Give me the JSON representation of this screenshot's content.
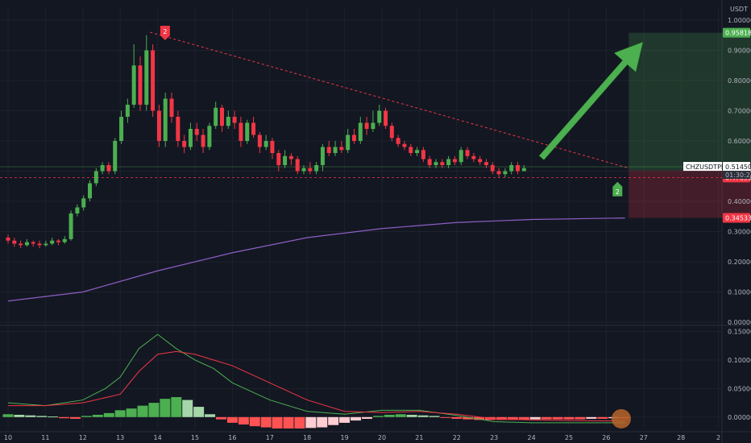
{
  "chart_data": [
    {
      "type": "candlestick",
      "panel": "price",
      "currency_label": "USDT",
      "symbol": "CHZUSDTPERP",
      "last_price": "0.51450",
      "countdown": "01:30:23",
      "x_tick_labels": [
        "10",
        "11",
        "12",
        "13",
        "14",
        "15",
        "16",
        "17",
        "18",
        "19",
        "20",
        "21",
        "22",
        "23",
        "24",
        "25",
        "26",
        "27",
        "28",
        "2"
      ],
      "y_ticks": [
        0.0,
        0.1,
        0.2,
        0.3,
        0.4,
        0.5,
        0.6,
        0.7,
        0.8,
        0.9,
        1.0
      ],
      "y_tick_labels": [
        "0.00000",
        "0.10000",
        "0.20000",
        "0.30000",
        "0.40000",
        "0.50000",
        "0.60000",
        "0.70000",
        "0.80000",
        "0.90000",
        "1.00000"
      ],
      "ylim": [
        0.0,
        1.04
      ],
      "price_tags": [
        {
          "label": "0.95818",
          "value": 0.95818,
          "color": "#4caf50"
        },
        {
          "label": "0.50237",
          "value": 0.50237,
          "color": "#787b86"
        },
        {
          "label": "0.47896",
          "value": 0.47896,
          "color": "#f23645"
        },
        {
          "label": "0.34533",
          "value": 0.34533,
          "color": "#f23645"
        }
      ],
      "candles": [
        [
          10.0,
          0.28,
          0.27,
          0.29,
          0.26
        ],
        [
          10.2,
          0.27,
          0.26,
          0.28,
          0.25
        ],
        [
          10.4,
          0.26,
          0.255,
          0.27,
          0.245
        ],
        [
          10.6,
          0.255,
          0.265,
          0.275,
          0.25
        ],
        [
          10.8,
          0.265,
          0.26,
          0.27,
          0.25
        ],
        [
          11.0,
          0.26,
          0.255,
          0.27,
          0.245
        ],
        [
          11.2,
          0.255,
          0.26,
          0.27,
          0.25
        ],
        [
          11.4,
          0.26,
          0.27,
          0.28,
          0.255
        ],
        [
          11.6,
          0.27,
          0.265,
          0.275,
          0.255
        ],
        [
          11.8,
          0.265,
          0.275,
          0.285,
          0.26
        ],
        [
          12.0,
          0.275,
          0.36,
          0.37,
          0.27
        ],
        [
          12.2,
          0.36,
          0.38,
          0.39,
          0.35
        ],
        [
          12.4,
          0.38,
          0.41,
          0.42,
          0.37
        ],
        [
          12.6,
          0.41,
          0.46,
          0.47,
          0.4
        ],
        [
          12.8,
          0.46,
          0.5,
          0.51,
          0.45
        ],
        [
          13.0,
          0.5,
          0.52,
          0.53,
          0.49
        ],
        [
          13.2,
          0.52,
          0.5,
          0.53,
          0.49
        ],
        [
          13.4,
          0.5,
          0.6,
          0.61,
          0.49
        ],
        [
          13.6,
          0.6,
          0.68,
          0.7,
          0.59
        ],
        [
          13.8,
          0.68,
          0.72,
          0.74,
          0.66
        ],
        [
          14.0,
          0.72,
          0.85,
          0.92,
          0.71
        ],
        [
          14.2,
          0.85,
          0.72,
          0.88,
          0.7
        ],
        [
          14.4,
          0.72,
          0.9,
          0.95,
          0.7
        ],
        [
          14.6,
          0.9,
          0.7,
          0.92,
          0.68
        ],
        [
          14.8,
          0.7,
          0.6,
          0.72,
          0.58
        ],
        [
          15.0,
          0.6,
          0.74,
          0.76,
          0.58
        ],
        [
          15.2,
          0.74,
          0.68,
          0.76,
          0.66
        ],
        [
          15.4,
          0.68,
          0.6,
          0.7,
          0.58
        ],
        [
          15.6,
          0.6,
          0.58,
          0.62,
          0.56
        ],
        [
          15.8,
          0.58,
          0.64,
          0.66,
          0.57
        ],
        [
          16.0,
          0.64,
          0.62,
          0.66,
          0.6
        ],
        [
          16.2,
          0.62,
          0.58,
          0.64,
          0.56
        ],
        [
          16.4,
          0.58,
          0.65,
          0.66,
          0.57
        ],
        [
          16.6,
          0.65,
          0.71,
          0.73,
          0.64
        ],
        [
          16.8,
          0.71,
          0.65,
          0.72,
          0.63
        ],
        [
          17.0,
          0.65,
          0.68,
          0.7,
          0.64
        ],
        [
          17.2,
          0.68,
          0.66,
          0.7,
          0.64
        ],
        [
          17.4,
          0.66,
          0.6,
          0.68,
          0.58
        ],
        [
          17.6,
          0.6,
          0.66,
          0.67,
          0.59
        ],
        [
          17.8,
          0.66,
          0.62,
          0.68,
          0.61
        ],
        [
          18.0,
          0.62,
          0.58,
          0.63,
          0.56
        ],
        [
          18.2,
          0.58,
          0.6,
          0.62,
          0.57
        ],
        [
          18.4,
          0.6,
          0.56,
          0.61,
          0.54
        ],
        [
          18.6,
          0.56,
          0.52,
          0.57,
          0.5
        ],
        [
          18.8,
          0.52,
          0.55,
          0.57,
          0.51
        ],
        [
          19.0,
          0.55,
          0.54,
          0.56,
          0.52
        ],
        [
          19.2,
          0.54,
          0.5,
          0.55,
          0.49
        ],
        [
          19.4,
          0.5,
          0.51,
          0.52,
          0.49
        ],
        [
          19.6,
          0.51,
          0.5,
          0.53,
          0.49
        ],
        [
          19.8,
          0.5,
          0.52,
          0.53,
          0.49
        ],
        [
          20.0,
          0.52,
          0.58,
          0.59,
          0.5
        ],
        [
          20.2,
          0.58,
          0.56,
          0.6,
          0.55
        ],
        [
          20.4,
          0.56,
          0.58,
          0.6,
          0.55
        ],
        [
          20.6,
          0.58,
          0.57,
          0.6,
          0.56
        ],
        [
          20.8,
          0.57,
          0.62,
          0.64,
          0.56
        ],
        [
          21.0,
          0.62,
          0.6,
          0.64,
          0.59
        ],
        [
          21.2,
          0.6,
          0.66,
          0.68,
          0.59
        ],
        [
          21.4,
          0.66,
          0.64,
          0.68,
          0.62
        ],
        [
          21.6,
          0.64,
          0.66,
          0.7,
          0.63
        ],
        [
          21.8,
          0.66,
          0.7,
          0.72,
          0.65
        ],
        [
          22.0,
          0.7,
          0.65,
          0.71,
          0.64
        ],
        [
          22.2,
          0.65,
          0.61,
          0.66,
          0.6
        ],
        [
          22.4,
          0.61,
          0.59,
          0.62,
          0.58
        ],
        [
          22.6,
          0.59,
          0.58,
          0.6,
          0.57
        ],
        [
          22.8,
          0.58,
          0.56,
          0.59,
          0.55
        ],
        [
          23.0,
          0.56,
          0.57,
          0.58,
          0.55
        ],
        [
          23.2,
          0.57,
          0.54,
          0.58,
          0.53
        ],
        [
          23.4,
          0.54,
          0.52,
          0.55,
          0.51
        ],
        [
          23.6,
          0.52,
          0.53,
          0.54,
          0.51
        ],
        [
          23.8,
          0.53,
          0.52,
          0.54,
          0.51
        ],
        [
          24.0,
          0.52,
          0.54,
          0.55,
          0.51
        ],
        [
          24.2,
          0.54,
          0.53,
          0.55,
          0.52
        ],
        [
          24.4,
          0.53,
          0.57,
          0.58,
          0.52
        ],
        [
          24.6,
          0.57,
          0.55,
          0.58,
          0.54
        ],
        [
          24.8,
          0.55,
          0.54,
          0.56,
          0.53
        ],
        [
          25.0,
          0.54,
          0.53,
          0.55,
          0.52
        ],
        [
          25.2,
          0.53,
          0.52,
          0.54,
          0.51
        ],
        [
          25.4,
          0.52,
          0.5,
          0.53,
          0.49
        ],
        [
          25.6,
          0.5,
          0.49,
          0.51,
          0.48
        ],
        [
          25.8,
          0.49,
          0.5,
          0.51,
          0.48
        ],
        [
          26.0,
          0.5,
          0.52,
          0.53,
          0.49
        ],
        [
          26.2,
          0.52,
          0.5,
          0.53,
          0.49
        ],
        [
          26.4,
          0.5,
          0.51,
          0.52,
          0.5
        ]
      ],
      "ema": {
        "name": "",
        "color": "#8e5ec4",
        "points": [
          [
            10,
            0.07
          ],
          [
            12,
            0.1
          ],
          [
            14,
            0.17
          ],
          [
            16,
            0.23
          ],
          [
            18,
            0.28
          ],
          [
            20,
            0.31
          ],
          [
            22,
            0.33
          ],
          [
            24,
            0.34
          ],
          [
            26.5,
            0.345
          ]
        ]
      },
      "trendline": {
        "color": "#f23645",
        "from": [
          13.8,
          0.96
        ],
        "to": [
          26.6,
          0.51
        ]
      },
      "ref_line": {
        "color": "#f23645",
        "value": 0.47896
      },
      "position": {
        "entry": 0.50237,
        "target": 0.95818,
        "stop": 0.34533,
        "from": 26.6,
        "to": 29.9
      },
      "signal_markers": [
        {
          "label": "2",
          "x": 14.2,
          "value": 0.96,
          "color": "#f23645",
          "dir": "down"
        },
        {
          "label": "2",
          "x": 26.3,
          "value": 0.47,
          "color": "#4caf50",
          "dir": "up"
        }
      ]
    },
    {
      "type": "macd",
      "panel": "indicator",
      "y_ticks": [
        0.0,
        0.05,
        0.1,
        0.15
      ],
      "y_tick_labels": [
        "0.00000",
        "0.05000",
        "0.10000",
        "0.15000"
      ],
      "ylim": [
        -0.02,
        0.155
      ],
      "macd_line": {
        "color": "#4caf50",
        "points": [
          [
            10,
            0.025
          ],
          [
            11,
            0.02
          ],
          [
            12,
            0.03
          ],
          [
            12.6,
            0.05
          ],
          [
            13,
            0.07
          ],
          [
            13.5,
            0.12
          ],
          [
            14,
            0.145
          ],
          [
            14.5,
            0.12
          ],
          [
            15,
            0.1
          ],
          [
            15.5,
            0.085
          ],
          [
            16,
            0.06
          ],
          [
            17,
            0.03
          ],
          [
            18,
            0.01
          ],
          [
            19,
            0.005
          ],
          [
            20,
            0.012
          ],
          [
            21,
            0.012
          ],
          [
            22,
            0.003
          ],
          [
            23,
            -0.008
          ],
          [
            24,
            -0.01
          ],
          [
            25,
            -0.01
          ],
          [
            26.5,
            -0.01
          ]
        ]
      },
      "signal_line": {
        "color": "#f23645",
        "points": [
          [
            10,
            0.02
          ],
          [
            11,
            0.02
          ],
          [
            12,
            0.025
          ],
          [
            13,
            0.04
          ],
          [
            13.5,
            0.08
          ],
          [
            14,
            0.11
          ],
          [
            14.5,
            0.115
          ],
          [
            15,
            0.11
          ],
          [
            16,
            0.09
          ],
          [
            17,
            0.06
          ],
          [
            18,
            0.03
          ],
          [
            19,
            0.01
          ],
          [
            20,
            0.008
          ],
          [
            21,
            0.01
          ],
          [
            22,
            0.005
          ],
          [
            23,
            -0.003
          ],
          [
            24,
            -0.005
          ],
          [
            25,
            -0.006
          ],
          [
            26.5,
            -0.007
          ]
        ]
      },
      "histogram": [
        [
          10,
          0.005
        ],
        [
          10.3,
          0.004
        ],
        [
          10.6,
          0.003
        ],
        [
          10.9,
          0.002
        ],
        [
          11.2,
          0.001
        ],
        [
          11.5,
          -0.002
        ],
        [
          11.8,
          -0.003
        ],
        [
          12.1,
          0.002
        ],
        [
          12.4,
          0.004
        ],
        [
          12.7,
          0.007
        ],
        [
          13,
          0.012
        ],
        [
          13.3,
          0.015
        ],
        [
          13.6,
          0.02
        ],
        [
          13.9,
          0.025
        ],
        [
          14.2,
          0.032
        ],
        [
          14.5,
          0.035
        ],
        [
          14.8,
          0.03
        ],
        [
          15.1,
          0.018
        ],
        [
          15.4,
          0.005
        ],
        [
          15.7,
          -0.004
        ],
        [
          16,
          -0.01
        ],
        [
          16.3,
          -0.013
        ],
        [
          16.6,
          -0.016
        ],
        [
          16.9,
          -0.018
        ],
        [
          17.2,
          -0.02
        ],
        [
          17.5,
          -0.02
        ],
        [
          17.8,
          -0.02
        ],
        [
          18.1,
          -0.019
        ],
        [
          18.4,
          -0.018
        ],
        [
          18.7,
          -0.014
        ],
        [
          19,
          -0.01
        ],
        [
          19.3,
          -0.006
        ],
        [
          19.6,
          -0.003
        ],
        [
          19.9,
          0.002
        ],
        [
          20.2,
          0.004
        ],
        [
          20.5,
          0.005
        ],
        [
          20.8,
          0.004
        ],
        [
          21.1,
          0.003
        ],
        [
          21.4,
          0.002
        ],
        [
          21.7,
          -0.001
        ],
        [
          22.0,
          -0.003
        ],
        [
          22.3,
          -0.004
        ],
        [
          22.6,
          -0.005
        ],
        [
          22.9,
          -0.005
        ],
        [
          23.2,
          -0.005
        ],
        [
          23.5,
          -0.005
        ],
        [
          23.8,
          -0.005
        ],
        [
          24.1,
          -0.004
        ],
        [
          24.4,
          -0.004
        ],
        [
          24.7,
          -0.004
        ],
        [
          25,
          -0.004
        ],
        [
          25.3,
          -0.004
        ],
        [
          25.6,
          -0.003
        ],
        [
          25.9,
          -0.003
        ],
        [
          26.2,
          -0.002
        ],
        [
          26.5,
          -0.002
        ]
      ],
      "highlight": {
        "x": 26.4,
        "value": -0.003,
        "color": "#b8652a"
      }
    }
  ]
}
